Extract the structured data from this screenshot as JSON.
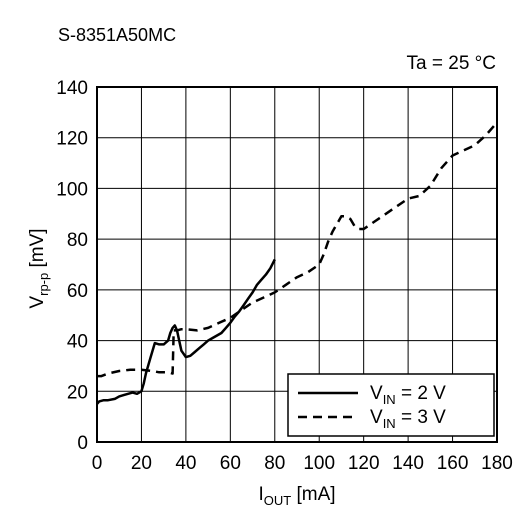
{
  "chart_data": {
    "type": "line",
    "title": "S-8351A50MC",
    "condition": "Ta = 25 °C",
    "xlabel": {
      "main": "I",
      "sub": "OUT",
      "unit": " [mA]"
    },
    "ylabel": {
      "main": "V",
      "sub": "rp-p",
      "unit": " [mV]"
    },
    "xlim": [
      0,
      180
    ],
    "ylim": [
      0,
      140
    ],
    "x_ticks": [
      0,
      20,
      40,
      60,
      80,
      100,
      120,
      140,
      160,
      180
    ],
    "y_ticks": [
      0,
      20,
      40,
      60,
      80,
      100,
      120,
      140
    ],
    "grid": true,
    "legend_position": "bottom-right",
    "series": [
      {
        "name": {
          "main": "V",
          "sub": "IN",
          "rest": " = 2 V"
        },
        "line_style": "solid",
        "color": "#000000",
        "x": [
          0,
          1,
          3,
          5,
          8,
          10,
          12,
          14,
          16,
          18,
          20,
          21,
          22,
          24,
          26,
          28,
          30,
          32,
          33,
          34,
          35,
          36,
          37,
          38,
          40,
          42,
          44,
          46,
          48,
          50,
          52,
          54,
          56,
          58,
          60,
          62,
          64,
          66,
          68,
          70,
          72,
          74,
          76,
          78,
          80
        ],
        "y": [
          15,
          16,
          16.5,
          16.5,
          17,
          18,
          18.5,
          19,
          19.5,
          19,
          20,
          23,
          27,
          33,
          39,
          38.5,
          38.5,
          40,
          43,
          45,
          46,
          44,
          40,
          36,
          33.5,
          34,
          35.5,
          37,
          38.5,
          40,
          41,
          42,
          43,
          45,
          47,
          49.5,
          51.5,
          54,
          56.5,
          59,
          62,
          64,
          66,
          68.5,
          72
        ]
      },
      {
        "name": {
          "main": "V",
          "sub": "IN",
          "rest": " = 3 V"
        },
        "line_style": "dashed",
        "color": "#000000",
        "x": [
          0,
          2,
          5,
          10,
          15,
          20,
          25,
          28,
          30,
          32,
          34,
          34.5,
          35,
          36,
          38,
          40,
          45,
          50,
          55,
          60,
          65,
          70,
          75,
          80,
          85,
          90,
          95,
          100,
          102,
          104,
          106,
          108,
          110,
          112,
          114,
          116,
          118,
          120,
          125,
          130,
          135,
          140,
          145,
          150,
          155,
          160,
          165,
          170,
          175,
          180
        ],
        "y": [
          26,
          26,
          27,
          28,
          28.5,
          28.5,
          28,
          27.5,
          27.5,
          27.5,
          27,
          44,
          44,
          44,
          44.5,
          44.5,
          44,
          45,
          47,
          49,
          52,
          55,
          57,
          59,
          62,
          65,
          67,
          70,
          74,
          79,
          83,
          86,
          89,
          89,
          88,
          85,
          84,
          84,
          87,
          90,
          93,
          96,
          97,
          101,
          108,
          113,
          115,
          117,
          121,
          126
        ]
      }
    ]
  }
}
